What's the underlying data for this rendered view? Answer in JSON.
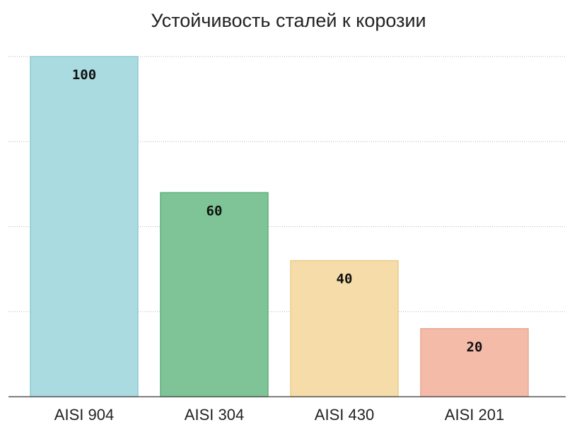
{
  "chart_data": {
    "type": "bar",
    "title": "Устойчивость сталей к корозии",
    "categories": [
      "AISI 904",
      "AISI 304",
      "AISI 430",
      "AISI 201"
    ],
    "values": [
      100,
      60,
      40,
      20
    ],
    "data_labels": [
      "100",
      "60",
      "40",
      "20"
    ],
    "ylim": [
      0,
      100
    ],
    "grid": true,
    "legend": "none",
    "colors": [
      "#a9dbe0",
      "#7ec497",
      "#f5dca8",
      "#f4bca8"
    ],
    "edge_colors": [
      "#8ec9cf",
      "#5fae7b",
      "#eccb8a",
      "#e9a690"
    ]
  }
}
